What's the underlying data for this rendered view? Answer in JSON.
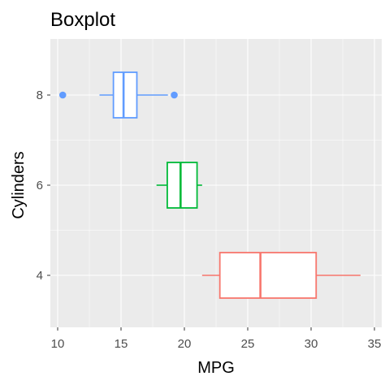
{
  "chart_data": {
    "type": "boxplot",
    "title": "Boxplot",
    "xlabel": "MPG",
    "ylabel": "Cylinders",
    "xlim": [
      9.5,
      35
    ],
    "x_ticks": [
      10,
      15,
      20,
      25,
      30,
      35
    ],
    "x_tick_labels": [
      "10",
      "15",
      "20",
      "25",
      "30",
      "35"
    ],
    "categories": [
      "4",
      "6",
      "8"
    ],
    "orientation": "horizontal",
    "grid": true,
    "legend": "none",
    "series": [
      {
        "category": "8",
        "color": "#619CFF",
        "whisker_low": 13.3,
        "q1": 14.4,
        "median": 15.2,
        "q3": 16.25,
        "whisker_high": 18.7,
        "outliers": [
          10.4,
          19.2
        ]
      },
      {
        "category": "6",
        "color": "#00BA38",
        "whisker_low": 17.8,
        "q1": 18.65,
        "median": 19.7,
        "q3": 21.0,
        "whisker_high": 21.4,
        "outliers": []
      },
      {
        "category": "4",
        "color": "#F8766D",
        "whisker_low": 21.4,
        "q1": 22.8,
        "median": 26.0,
        "q3": 30.4,
        "whisker_high": 33.9,
        "outliers": []
      }
    ],
    "panel_color": "#EBEBEB",
    "grid_color": "#FFFFFF"
  }
}
